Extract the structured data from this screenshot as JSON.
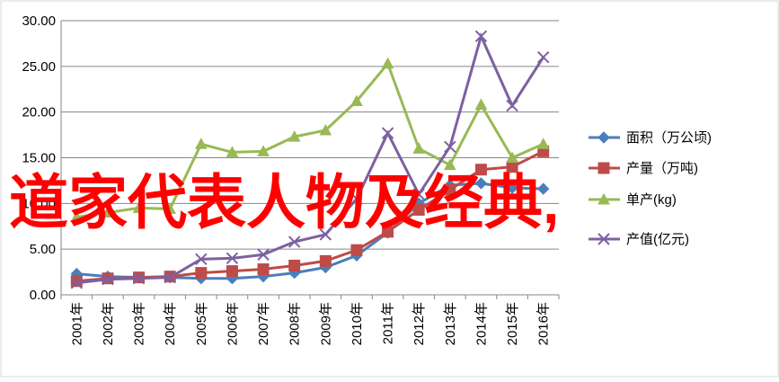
{
  "chart_data": {
    "type": "line",
    "annotation": "道家代表人物及经典,",
    "categories": [
      "2001年",
      "2002年",
      "2003年",
      "2004年",
      "2005年",
      "2006年",
      "2007年",
      "2008年",
      "2009年",
      "2010年",
      "2011年",
      "2012年",
      "2013年",
      "2014年",
      "2015年",
      "2016年"
    ],
    "series": [
      {
        "name": "面积（万公顷)",
        "color": "#4a7ebb",
        "marker": "diamond",
        "values": [
          2.3,
          2.0,
          1.9,
          1.9,
          1.8,
          1.8,
          2.0,
          2.4,
          3.0,
          4.3,
          6.8,
          10.0,
          12.0,
          12.2,
          11.7,
          11.6
        ]
      },
      {
        "name": "产量（万吨)",
        "color": "#be4b48",
        "marker": "square",
        "values": [
          1.5,
          1.8,
          1.9,
          2.0,
          2.4,
          2.6,
          2.8,
          3.2,
          3.7,
          4.9,
          6.9,
          9.3,
          11.5,
          13.7,
          14.0,
          15.7
        ]
      },
      {
        "name": "单产(kg)",
        "color": "#98b954",
        "marker": "triangle",
        "values": [
          8.5,
          9.0,
          9.5,
          9.4,
          16.5,
          15.6,
          15.7,
          17.3,
          18.0,
          21.2,
          25.3,
          16.0,
          14.2,
          20.8,
          15.0,
          16.5
        ]
      },
      {
        "name": "产值(亿元)",
        "color": "#7d60a0",
        "marker": "x",
        "values": [
          1.3,
          1.7,
          1.8,
          1.9,
          3.9,
          4.0,
          4.4,
          5.8,
          6.6,
          10.5,
          17.7,
          11.0,
          16.2,
          28.3,
          20.7,
          26.0
        ]
      }
    ],
    "ylim": [
      0,
      30
    ],
    "yticks": [
      {
        "value": 0,
        "label": "0.00"
      },
      {
        "value": 5,
        "label": "5.00"
      },
      {
        "value": 10,
        "label": "10.00"
      },
      {
        "value": 15,
        "label": "15.00"
      },
      {
        "value": 20,
        "label": "20.00"
      },
      {
        "value": 25,
        "label": "25.00"
      },
      {
        "value": 30,
        "label": "30.00"
      }
    ],
    "grid": true,
    "legend": "right"
  }
}
